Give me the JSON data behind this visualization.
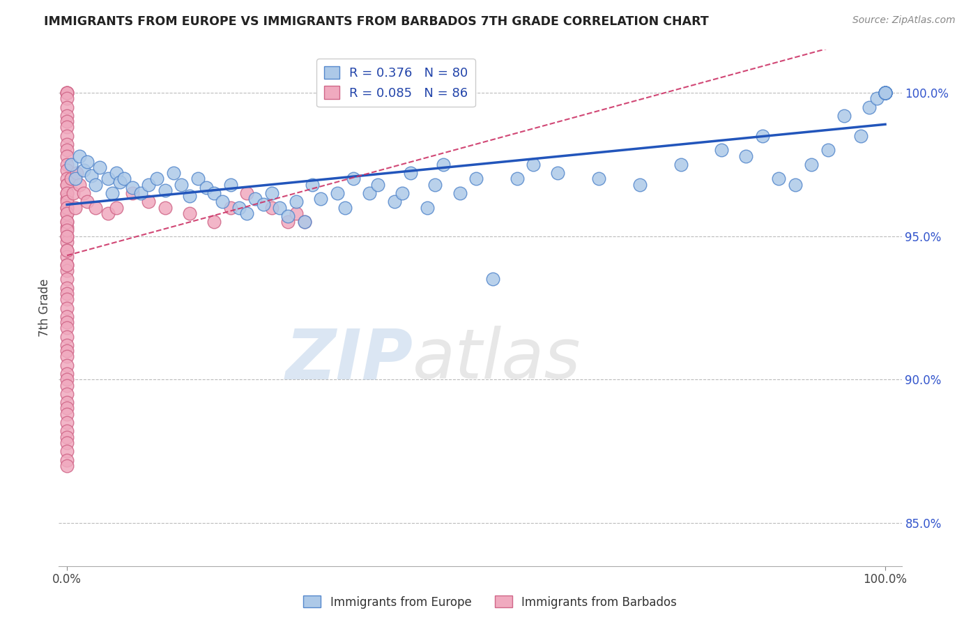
{
  "title": "IMMIGRANTS FROM EUROPE VS IMMIGRANTS FROM BARBADOS 7TH GRADE CORRELATION CHART",
  "source_text": "Source: ZipAtlas.com",
  "ylabel": "7th Grade",
  "xlim": [
    -1,
    102
  ],
  "ylim": [
    83.5,
    101.5
  ],
  "y_ticks": [
    85,
    90,
    95,
    100
  ],
  "y_ticklabels": [
    "85.0%",
    "90.0%",
    "95.0%",
    "100.0%"
  ],
  "legend_blue_label": "Immigrants from Europe",
  "legend_pink_label": "Immigrants from Barbados",
  "R_blue": "0.376",
  "N_blue": "80",
  "R_pink": "0.085",
  "N_pink": "86",
  "blue_color": "#adc9e8",
  "blue_edge": "#5588cc",
  "pink_color": "#f0aabf",
  "pink_edge": "#d06688",
  "blue_line_color": "#2255bb",
  "pink_line_color": "#cc3366",
  "watermark_zip": "ZIP",
  "watermark_atlas": "atlas",
  "background_color": "#ffffff",
  "grid_color": "#bbbbbb",
  "blue_x": [
    0.5,
    1.0,
    1.5,
    2.0,
    2.5,
    3.0,
    3.5,
    4.0,
    5.0,
    5.5,
    6.0,
    6.5,
    7.0,
    8.0,
    9.0,
    10.0,
    11.0,
    12.0,
    13.0,
    14.0,
    15.0,
    16.0,
    17.0,
    18.0,
    19.0,
    20.0,
    21.0,
    22.0,
    23.0,
    24.0,
    25.0,
    26.0,
    27.0,
    28.0,
    29.0,
    30.0,
    31.0,
    33.0,
    34.0,
    35.0,
    37.0,
    38.0,
    40.0,
    41.0,
    42.0,
    44.0,
    45.0,
    46.0,
    48.0,
    50.0,
    52.0,
    55.0,
    57.0,
    60.0,
    65.0,
    70.0,
    75.0,
    80.0,
    83.0,
    85.0,
    87.0,
    89.0,
    91.0,
    93.0,
    95.0,
    97.0,
    98.0,
    99.0,
    100.0,
    100.0,
    100.0,
    100.0,
    100.0,
    100.0,
    100.0,
    100.0,
    100.0,
    100.0,
    100.0,
    100.0
  ],
  "blue_y": [
    97.5,
    97.0,
    97.8,
    97.3,
    97.6,
    97.1,
    96.8,
    97.4,
    97.0,
    96.5,
    97.2,
    96.9,
    97.0,
    96.7,
    96.5,
    96.8,
    97.0,
    96.6,
    97.2,
    96.8,
    96.4,
    97.0,
    96.7,
    96.5,
    96.2,
    96.8,
    96.0,
    95.8,
    96.3,
    96.1,
    96.5,
    96.0,
    95.7,
    96.2,
    95.5,
    96.8,
    96.3,
    96.5,
    96.0,
    97.0,
    96.5,
    96.8,
    96.2,
    96.5,
    97.2,
    96.0,
    96.8,
    97.5,
    96.5,
    97.0,
    93.5,
    97.0,
    97.5,
    97.2,
    97.0,
    96.8,
    97.5,
    98.0,
    97.8,
    98.5,
    97.0,
    96.8,
    97.5,
    98.0,
    99.2,
    98.5,
    99.5,
    99.8,
    100.0,
    100.0,
    100.0,
    100.0,
    100.0,
    100.0,
    100.0,
    100.0,
    100.0,
    100.0,
    100.0,
    100.0
  ],
  "pink_x": [
    0.0,
    0.0,
    0.0,
    0.0,
    0.0,
    0.0,
    0.0,
    0.0,
    0.0,
    0.0,
    0.0,
    0.0,
    0.0,
    0.0,
    0.0,
    0.0,
    0.0,
    0.0,
    0.0,
    0.0,
    0.0,
    0.0,
    0.0,
    0.0,
    0.0,
    0.0,
    0.0,
    0.0,
    0.0,
    0.0,
    0.0,
    0.0,
    0.0,
    0.0,
    0.0,
    0.0,
    0.0,
    0.0,
    0.0,
    0.0,
    0.0,
    0.0,
    0.0,
    0.0,
    0.0,
    0.0,
    0.0,
    0.0,
    0.0,
    0.0,
    0.0,
    0.0,
    0.0,
    0.0,
    0.0,
    0.0,
    0.0,
    0.0,
    0.0,
    0.0,
    0.0,
    0.0,
    0.0,
    0.0,
    0.0,
    0.5,
    0.8,
    1.0,
    1.2,
    1.5,
    2.0,
    2.5,
    3.5,
    5.0,
    6.0,
    8.0,
    10.0,
    12.0,
    15.0,
    18.0,
    20.0,
    22.0,
    25.0,
    27.0,
    28.0,
    29.0
  ],
  "pink_y": [
    100.0,
    100.0,
    100.0,
    99.8,
    99.5,
    99.2,
    99.0,
    98.8,
    98.5,
    98.2,
    98.0,
    97.8,
    97.5,
    97.3,
    97.0,
    96.8,
    96.5,
    96.3,
    96.0,
    95.8,
    95.5,
    95.3,
    95.0,
    94.8,
    94.5,
    94.3,
    94.0,
    93.8,
    93.5,
    93.2,
    93.0,
    92.8,
    92.5,
    92.2,
    92.0,
    91.8,
    91.5,
    91.2,
    91.0,
    90.8,
    90.5,
    90.2,
    90.0,
    89.8,
    89.5,
    89.2,
    89.0,
    88.8,
    88.5,
    88.2,
    88.0,
    87.8,
    87.5,
    87.2,
    87.0,
    96.8,
    96.5,
    96.2,
    96.0,
    95.8,
    95.5,
    95.2,
    95.0,
    94.5,
    94.0,
    97.0,
    96.5,
    96.0,
    97.2,
    96.8,
    96.5,
    96.2,
    96.0,
    95.8,
    96.0,
    96.5,
    96.2,
    96.0,
    95.8,
    95.5,
    96.0,
    96.5,
    96.0,
    95.5,
    95.8,
    95.5
  ]
}
